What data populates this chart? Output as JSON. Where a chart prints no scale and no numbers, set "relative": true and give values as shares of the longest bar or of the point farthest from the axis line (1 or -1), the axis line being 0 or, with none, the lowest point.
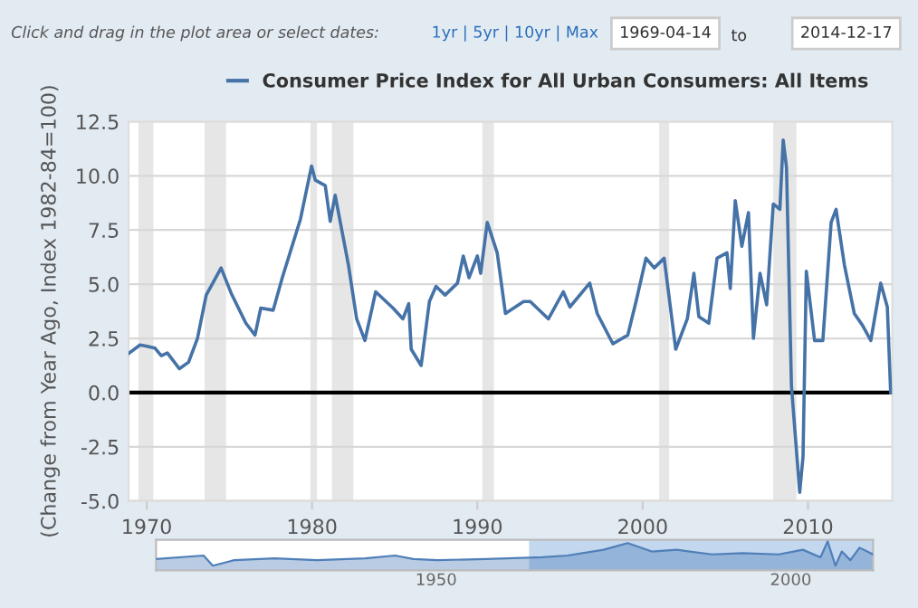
{
  "chart_data": [
    {
      "type": "line",
      "annotations": [
        "Click and drag in the plot area or select dates:",
        "1yr | 5yr | 10yr | Max",
        "1969-04-14",
        "to",
        "2014-12-17"
      ],
      "ylabel": "(Change from Year Ago, Index 1982-84=100)",
      "x": [
        1968.9,
        1969.6,
        1969.96,
        1970.5,
        1970.88,
        1971.25,
        1971.98,
        1972.53,
        1973.07,
        1973.6,
        1974.5,
        1975.1,
        1976.0,
        1976.55,
        1976.9,
        1977.65,
        1978.2,
        1979.3,
        1979.97,
        1980.2,
        1980.8,
        1981.1,
        1981.4,
        1982.2,
        1982.7,
        1983.2,
        1983.85,
        1984.9,
        1985.5,
        1985.85,
        1986.0,
        1986.6,
        1987.1,
        1987.5,
        1988.05,
        1988.8,
        1989.15,
        1989.5,
        1990.0,
        1990.2,
        1990.6,
        1991.2,
        1991.7,
        1992.8,
        1993.2,
        1994.3,
        1995.2,
        1995.6,
        1996.8,
        1997.25,
        1998.2,
        1999.1,
        1999.6,
        2000.2,
        2000.7,
        2001.3,
        2002.0,
        2002.7,
        2003.1,
        2003.4,
        2004.0,
        2004.5,
        2005.1,
        2005.3,
        2005.6,
        2006.0,
        2006.4,
        2006.7,
        2007.1,
        2007.5,
        2007.9,
        2008.3,
        2008.5,
        2008.7,
        2009.0,
        2009.5,
        2009.7,
        2009.9,
        2010.4,
        2010.9,
        2011.4,
        2011.7,
        2012.2,
        2012.8,
        2013.3,
        2013.8,
        2014.4,
        2014.8,
        2015.0
      ],
      "series": [
        {
          "name": "Consumer Price Index for All Urban Consumers: All Items",
          "color": "#4572a7",
          "values": [
            1.8,
            2.2,
            2.15,
            2.05,
            1.7,
            1.83,
            1.1,
            1.4,
            2.5,
            4.5,
            5.75,
            4.6,
            3.2,
            2.65,
            3.9,
            3.8,
            5.3,
            8.0,
            10.45,
            9.8,
            9.55,
            7.9,
            9.1,
            5.9,
            3.4,
            2.4,
            4.65,
            3.9,
            3.4,
            4.1,
            2.0,
            1.25,
            4.2,
            4.9,
            4.5,
            5.05,
            6.3,
            5.3,
            6.3,
            5.5,
            7.85,
            6.45,
            3.65,
            4.2,
            4.2,
            3.4,
            4.65,
            3.95,
            5.05,
            3.65,
            2.25,
            2.65,
            4.2,
            6.2,
            5.75,
            6.2,
            2.0,
            3.4,
            5.5,
            3.5,
            3.2,
            6.2,
            6.45,
            4.8,
            8.85,
            6.75,
            8.3,
            2.5,
            5.5,
            4.05,
            8.7,
            8.45,
            11.65,
            10.4,
            0.3,
            -4.6,
            -2.95,
            5.6,
            2.4,
            2.4,
            7.85,
            8.45,
            5.9,
            3.65,
            3.1,
            2.4,
            5.05,
            3.95,
            0.0
          ]
        }
      ],
      "xlim": [
        1968.9,
        2015.1
      ],
      "xticks": [
        1970,
        1980,
        1990,
        2000,
        2010
      ],
      "ylim": [
        -5,
        12.5
      ],
      "yticks": [
        {
          "value": -5,
          "label": "-5.0"
        },
        {
          "value": -2.5,
          "label": "-2.5"
        },
        {
          "value": 0,
          "label": "0.0"
        },
        {
          "value": 2.5,
          "label": "2.5"
        },
        {
          "value": 5,
          "label": "5.0"
        },
        {
          "value": 7.5,
          "label": "7.5"
        },
        {
          "value": 10,
          "label": "10.0"
        },
        {
          "value": 12.5,
          "label": "12.5"
        }
      ],
      "ref_lines": [
        {
          "axis": "y",
          "value": 0,
          "color": "#000000"
        }
      ],
      "bands": [
        {
          "axis": "x",
          "from": 1969.5,
          "to": 1970.4,
          "color": "#e6e6e6"
        },
        {
          "axis": "x",
          "from": 1973.5,
          "to": 1974.8,
          "color": "#e6e6e6"
        },
        {
          "axis": "x",
          "from": 1979.9,
          "to": 1980.3,
          "color": "#e6e6e6"
        },
        {
          "axis": "x",
          "from": 1981.2,
          "to": 1982.5,
          "color": "#e6e6e6"
        },
        {
          "axis": "x",
          "from": 1990.3,
          "to": 1991.0,
          "color": "#e6e6e6"
        },
        {
          "axis": "x",
          "from": 2001.0,
          "to": 2001.6,
          "color": "#e6e6e6"
        },
        {
          "axis": "x",
          "from": 2007.9,
          "to": 2009.3,
          "color": "#e6e6e6"
        }
      ],
      "grid": "y",
      "legend": "top"
    },
    {
      "type": "area",
      "relative": true,
      "x": [
        1910.5,
        1917.2,
        1918.5,
        1921.5,
        1927.2,
        1933.2,
        1940.0,
        1944.2,
        1946.8,
        1950.2,
        1957.0,
        1965.0,
        1968.5,
        1973.6,
        1977.0,
        1980.4,
        1983.9,
        1988.9,
        1993.2,
        1998.3,
        2001.7,
        2004.2,
        2005.2,
        2006.3,
        2007.2,
        2008.4,
        2009.7,
        2011.6
      ],
      "series": [
        {
          "color": "#4f7fb8",
          "values": [
            0.39,
            0.51,
            0.16,
            0.35,
            0.41,
            0.35,
            0.41,
            0.51,
            0.39,
            0.35,
            0.39,
            0.45,
            0.51,
            0.71,
            0.94,
            0.65,
            0.71,
            0.55,
            0.59,
            0.55,
            0.71,
            0.45,
            1.0,
            0.16,
            0.65,
            0.35,
            0.78,
            0.55
          ]
        }
      ],
      "xlim": [
        1910.5,
        2011.6
      ],
      "xticks": [
        1950,
        2000
      ],
      "bands": [
        {
          "axis": "x",
          "from": 1963.1,
          "to": 2011.6,
          "color": "#c3d7ee"
        }
      ]
    }
  ]
}
